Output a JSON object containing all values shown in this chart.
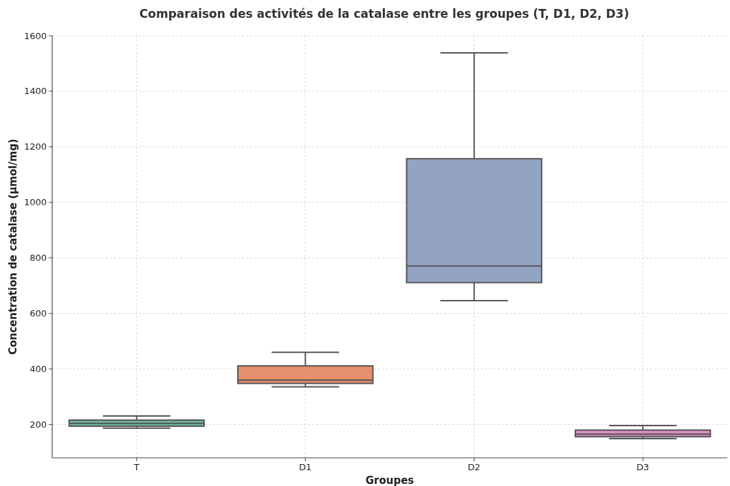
{
  "chart_data": {
    "type": "box",
    "title": "Comparaison des activités de la catalase entre les groupes (T, D1, D2, D3)",
    "xlabel": "Groupes",
    "ylabel": "Concentration de catalase (µmol/mg)",
    "categories": [
      "T",
      "D1",
      "D2",
      "D3"
    ],
    "colors": [
      "#6bb89a",
      "#e5906e",
      "#93a3c3",
      "#d98fbf"
    ],
    "boxes": [
      {
        "low": 187,
        "q1": 194,
        "median": 204,
        "q3": 216,
        "high": 231
      },
      {
        "low": 336,
        "q1": 348,
        "median": 360,
        "q3": 411,
        "high": 460
      },
      {
        "low": 646,
        "q1": 711,
        "median": 771,
        "q3": 1157,
        "high": 1538
      },
      {
        "low": 149,
        "q1": 156,
        "median": 165,
        "q3": 180,
        "high": 196
      }
    ],
    "ylim": [
      80,
      1600
    ],
    "yticks": [
      200,
      400,
      600,
      800,
      1000,
      1200,
      1400,
      1600
    ],
    "grid": true
  }
}
